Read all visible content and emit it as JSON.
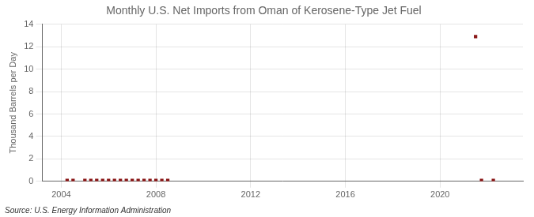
{
  "chart_data": {
    "type": "scatter",
    "title": "Monthly U.S. Net Imports from Oman of Kerosene-Type Jet Fuel",
    "ylabel": "Thousand Barrels per Day",
    "annotation": "Source: U.S. Energy Information Administration",
    "x": [
      2004.25,
      2004.5,
      2005.0,
      2005.25,
      2005.5,
      2005.75,
      2006.0,
      2006.25,
      2006.5,
      2006.75,
      2007.0,
      2007.25,
      2007.5,
      2007.75,
      2008.0,
      2008.25,
      2008.5,
      2021.5,
      2021.75,
      2022.25
    ],
    "values": [
      0.08,
      0.08,
      0.08,
      0.08,
      0.08,
      0.08,
      0.08,
      0.08,
      0.08,
      0.08,
      0.08,
      0.08,
      0.08,
      0.08,
      0.08,
      0.08,
      0.08,
      12.9,
      0.08,
      0.08
    ],
    "color": "#8b1a1a",
    "marker": "square",
    "xlim": [
      2003.2,
      2023.5
    ],
    "xticks": [
      2004,
      2008,
      2012,
      2016,
      2020
    ],
    "ylim": [
      0,
      14
    ],
    "yticks": [
      0,
      2,
      4,
      6,
      8,
      10,
      12,
      14
    ],
    "grid": true
  }
}
